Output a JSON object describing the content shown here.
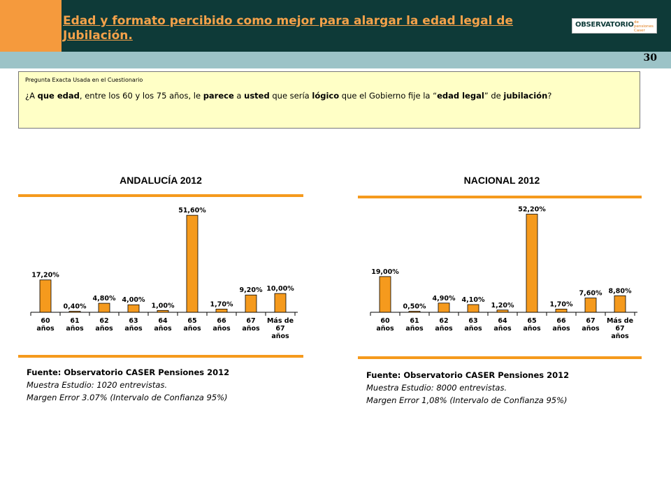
{
  "header": {
    "title": "Edad y formato percibido como mejor para alargar la edad legal de Jubilación.",
    "logo_text": "OBSERVATORIO",
    "logo_subtext": "de pensiones Caser",
    "page_number": "30"
  },
  "question": {
    "label": "Pregunta Exacta Usada en el Cuestionario",
    "text_parts": [
      {
        "t": "¿A ",
        "b": false
      },
      {
        "t": "que edad",
        "b": true
      },
      {
        "t": ", entre los 60 y los 75 años,  le ",
        "b": false
      },
      {
        "t": "parece",
        "b": true
      },
      {
        "t": " a ",
        "b": false
      },
      {
        "t": "usted",
        "b": true
      },
      {
        "t": " que sería ",
        "b": false
      },
      {
        "t": "lógico",
        "b": true
      },
      {
        "t": " que el Gobierno fije la “",
        "b": false
      },
      {
        "t": "edad legal",
        "b": true
      },
      {
        "t": "” de ",
        "b": false
      },
      {
        "t": "jubilación",
        "b": true
      },
      {
        "t": "?",
        "b": false
      }
    ]
  },
  "colors": {
    "bar": "#f59a1d",
    "bar_stroke": "#000000",
    "accent_line": "#f59a1d",
    "header_bg": "#0e3a38",
    "header_title": "#f5a24a",
    "question_bg": "#ffffc6"
  },
  "chart_data": [
    {
      "type": "bar",
      "title": "ANDALUCÍA 2012",
      "categories": [
        [
          "60",
          "años"
        ],
        [
          "61",
          "años"
        ],
        [
          "62",
          "años"
        ],
        [
          "63",
          "años"
        ],
        [
          "64",
          "años"
        ],
        [
          "65",
          "años"
        ],
        [
          "66",
          "años"
        ],
        [
          "67",
          "años"
        ],
        [
          "Más de",
          "67",
          "años"
        ]
      ],
      "values": [
        17.2,
        0.4,
        4.8,
        4.0,
        1.0,
        51.6,
        1.7,
        9.2,
        10.0
      ],
      "value_labels": [
        "17,20%",
        "0,40%",
        "4,80%",
        "4,00%",
        "1,00%",
        "51,60%",
        "1,70%",
        "9,20%",
        "10,00%"
      ],
      "ylim": [
        0,
        55
      ],
      "grid": false,
      "source": {
        "title": "Fuente: Observatorio CASER Pensiones 2012",
        "line1": "Muestra Estudio: 1020 entrevistas.",
        "line2": "Margen Error 3.07% (Intervalo de Confianza 95%)"
      }
    },
    {
      "type": "bar",
      "title": "NACIONAL 2012",
      "categories": [
        [
          "60",
          "años"
        ],
        [
          "61",
          "años"
        ],
        [
          "62",
          "años"
        ],
        [
          "63",
          "años"
        ],
        [
          "64",
          "años"
        ],
        [
          "65",
          "años"
        ],
        [
          "66",
          "años"
        ],
        [
          "67",
          "años"
        ],
        [
          "Más de",
          "67",
          "años"
        ]
      ],
      "values": [
        19.0,
        0.5,
        4.9,
        4.1,
        1.2,
        52.2,
        1.7,
        7.6,
        8.8
      ],
      "value_labels": [
        "19,00%",
        "0,50%",
        "4,90%",
        "4,10%",
        "1,20%",
        "52,20%",
        "1,70%",
        "7,60%",
        "8,80%"
      ],
      "ylim": [
        0,
        55
      ],
      "grid": false,
      "source": {
        "title": "Fuente: Observatorio CASER Pensiones 2012",
        "line1": "Muestra Estudio: 8000 entrevistas.",
        "line2": "Margen Error 1,08% (Intervalo de Confianza 95%)"
      }
    }
  ]
}
